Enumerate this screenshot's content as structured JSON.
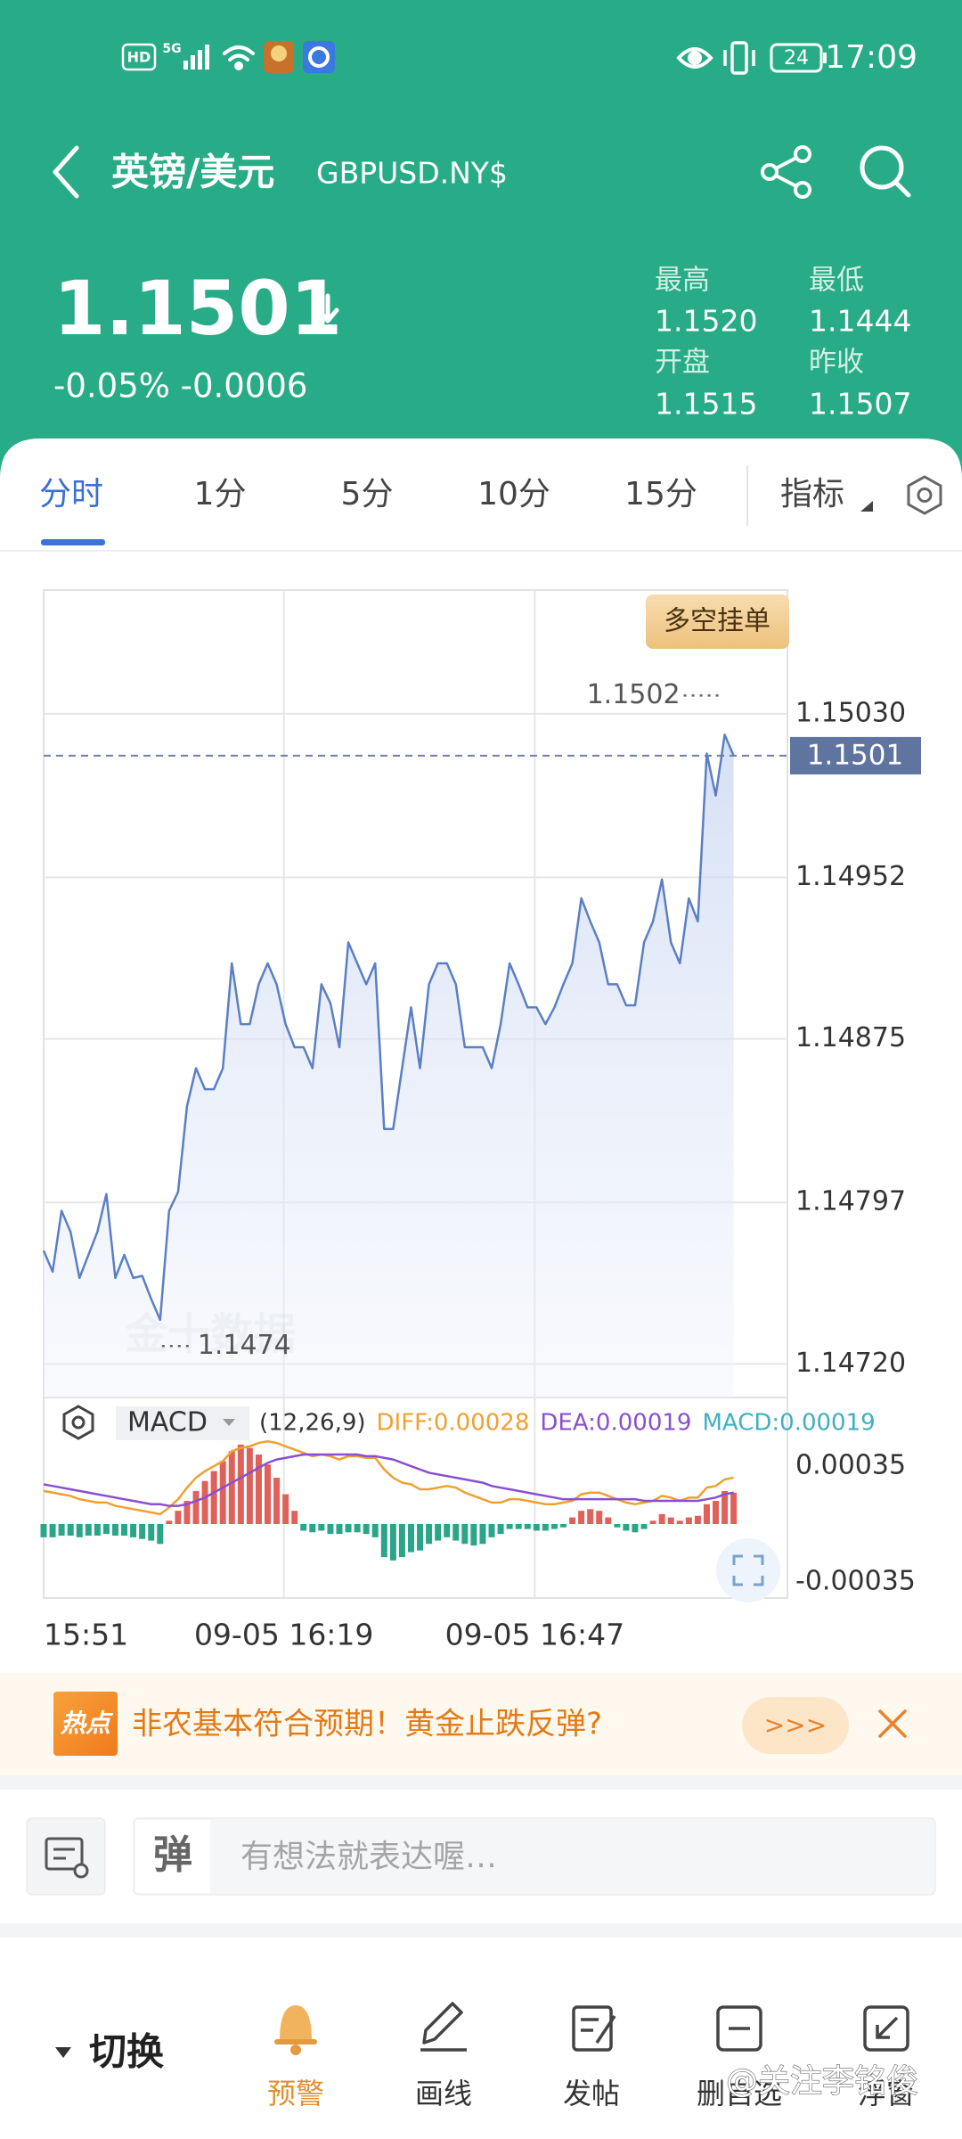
{
  "status_bar": {
    "network": [
      "HD",
      "5G"
    ],
    "battery": "24",
    "time": "17:09"
  },
  "header": {
    "title": "英镑/美元",
    "symbol": "GBPUSD.NY$"
  },
  "quote": {
    "price": "1.1501",
    "change": "-0.05% -0.0006",
    "stats": [
      {
        "label": "最高",
        "value": "1.1520"
      },
      {
        "label": "最低",
        "value": "1.1444"
      },
      {
        "label": "开盘",
        "value": "1.1515"
      },
      {
        "label": "昨收",
        "value": "1.1507"
      }
    ]
  },
  "tabs": [
    "分时",
    "1分",
    "5分",
    "10分",
    "15分",
    "指标"
  ],
  "chart_data": [
    {
      "type": "line",
      "color": "#5b7fc4",
      "grid": true,
      "categories": [
        "15:51",
        null,
        null,
        null,
        null,
        null,
        null,
        null,
        null,
        null,
        null,
        null,
        null,
        null,
        null,
        null,
        null,
        null,
        null,
        null,
        null,
        null,
        null,
        null,
        null,
        null,
        null,
        null,
        "09-05 16:19",
        null,
        null,
        null,
        null,
        null,
        null,
        null,
        null,
        null,
        null,
        null,
        null,
        null,
        null,
        null,
        null,
        null,
        null,
        null,
        null,
        null,
        null,
        null,
        null,
        null,
        null,
        null,
        "09-05 16:47",
        null,
        null,
        null,
        null,
        null,
        null,
        null,
        null,
        null,
        null,
        null,
        null,
        null,
        null,
        null,
        null,
        null,
        null,
        null,
        null,
        null,
        null,
        null,
        null,
        null,
        null,
        null
      ],
      "values": [
        1.14774,
        1.14764,
        1.14793,
        1.14783,
        1.14761,
        1.14772,
        1.14783,
        1.14801,
        1.14761,
        1.14772,
        1.14761,
        1.14762,
        1.14751,
        1.14741,
        1.14793,
        1.14802,
        1.14843,
        1.14861,
        1.14851,
        1.14851,
        1.14861,
        1.14911,
        1.14882,
        1.14882,
        1.14901,
        1.14911,
        1.14901,
        1.14882,
        1.14871,
        1.14871,
        1.14861,
        1.14901,
        1.14892,
        1.14871,
        1.14921,
        1.14911,
        1.14901,
        1.14911,
        1.14832,
        1.14832,
        1.14861,
        1.1489,
        1.14861,
        1.14901,
        1.14911,
        1.14911,
        1.14901,
        1.14871,
        1.14871,
        1.14871,
        1.14861,
        1.14882,
        1.14911,
        1.14901,
        1.1489,
        1.1489,
        1.14882,
        1.1489,
        1.14901,
        1.14911,
        1.14942,
        1.14931,
        1.14921,
        1.14901,
        1.14901,
        1.14891,
        1.14891,
        1.14921,
        1.14931,
        1.14951,
        1.14921,
        1.14911,
        1.14942,
        1.14931,
        1.15011,
        1.14991,
        1.1502,
        1.1501,
        null,
        null,
        null,
        null,
        null,
        null
      ],
      "ylim": [
        1.14704,
        1.15089
      ],
      "yticks": [
        {
          "value": 1.1503,
          "label": "1.15030"
        },
        1.14952,
        1.14875,
        1.14797,
        {
          "value": 1.1472,
          "label": "1.14720"
        }
      ],
      "last_price": 1.1501,
      "high": 1.1502,
      "low": 1.1474,
      "button": "多空挂单",
      "watermark": "金十数据"
    },
    {
      "type": "macd",
      "indicator": "MACD",
      "params": "(12,26,9)",
      "up_color": "#e0605a",
      "down_color": "#2aa58a",
      "ylim": [
        -0.000447,
        0.000765
      ],
      "yticks": [
        0.00035,
        -0.00035
      ],
      "series": [
        {
          "name": "DIFF:0.00028",
          "color": "#f0a030",
          "style": "line",
          "values": [
            0.0002,
            0.00019,
            0.00018,
            0.00017,
            0.00015,
            0.00014,
            0.00013,
            0.00013,
            0.00011,
            0.0001,
            9e-05,
            8e-05,
            7e-05,
            6e-05,
            0.0001,
            0.00015,
            0.00022,
            0.00028,
            0.00032,
            0.00035,
            0.00038,
            0.00044,
            0.00046,
            0.00047,
            0.00049,
            0.0005,
            0.00049,
            0.00047,
            0.00045,
            0.00043,
            0.00041,
            0.00042,
            0.00041,
            0.00039,
            0.00041,
            0.00041,
            0.0004,
            0.0004,
            0.00033,
            0.00028,
            0.00025,
            0.00024,
            0.00021,
            0.00021,
            0.00022,
            0.00023,
            0.00022,
            0.00019,
            0.00017,
            0.00015,
            0.00013,
            0.00013,
            0.00015,
            0.00015,
            0.00014,
            0.00013,
            0.00012,
            0.00012,
            0.00013,
            0.00014,
            0.00018,
            0.00019,
            0.00019,
            0.00017,
            0.00015,
            0.00013,
            0.00012,
            0.00013,
            0.00014,
            0.00017,
            0.00016,
            0.00014,
            0.00016,
            0.00016,
            0.00022,
            0.00023,
            0.00027,
            0.00028
          ]
        },
        {
          "name": "DEA:0.00019",
          "color": "#8a4fd0",
          "style": "line",
          "values": [
            0.00024,
            0.00023,
            0.00022,
            0.00021,
            0.0002,
            0.00019,
            0.00018,
            0.00017,
            0.00016,
            0.00015,
            0.00014,
            0.00013,
            0.00012,
            0.00012,
            0.00011,
            0.00011,
            0.00012,
            0.00014,
            0.00016,
            0.00019,
            0.00022,
            0.00025,
            0.00028,
            0.00031,
            0.00034,
            0.00037,
            0.00039,
            0.0004,
            0.00041,
            0.00042,
            0.00042,
            0.00042,
            0.00042,
            0.00042,
            0.00042,
            0.00042,
            0.00041,
            0.00041,
            0.0004,
            0.00039,
            0.00037,
            0.00035,
            0.00033,
            0.00031,
            0.0003,
            0.00029,
            0.00028,
            0.00027,
            0.00026,
            0.00025,
            0.00023,
            0.00022,
            0.00021,
            0.0002,
            0.00019,
            0.00018,
            0.00017,
            0.00016,
            0.00015,
            0.00015,
            0.00015,
            0.00015,
            0.00015,
            0.00015,
            0.00015,
            0.00015,
            0.00015,
            0.00014,
            0.00014,
            0.00014,
            0.00014,
            0.00014,
            0.00014,
            0.00014,
            0.00015,
            0.00016,
            0.00018,
            0.00019
          ]
        },
        {
          "name": "MACD:0.00019",
          "color": "#3fb0c0",
          "style": "bar",
          "values": [
            -8e-05,
            -8e-05,
            -7e-05,
            -7e-05,
            -8e-05,
            -7e-05,
            -7e-05,
            -6e-05,
            -7e-05,
            -7e-05,
            -8e-05,
            -9e-05,
            -0.0001,
            -0.00012,
            2e-05,
            8e-05,
            0.00014,
            0.0002,
            0.00026,
            0.00032,
            0.00038,
            0.00044,
            0.00048,
            0.00046,
            0.00042,
            0.00036,
            0.00028,
            0.00018,
            8e-05,
            -4e-05,
            -5e-05,
            -4e-05,
            -6e-05,
            -6e-05,
            -5e-05,
            -5e-05,
            -6e-05,
            -8e-05,
            -0.0002,
            -0.00022,
            -0.0002,
            -0.00017,
            -0.00016,
            -0.00012,
            -0.0001,
            -8e-05,
            -0.0001,
            -0.00012,
            -0.00013,
            -0.00012,
            -8e-05,
            -6e-05,
            -3e-05,
            -3e-05,
            -3e-05,
            -4e-05,
            -4e-05,
            -3e-05,
            -2e-05,
            4e-05,
            8e-05,
            9e-05,
            8e-05,
            4e-05,
            -2e-05,
            -4e-05,
            -5e-05,
            -3e-05,
            2e-05,
            6e-05,
            4e-05,
            2e-05,
            4e-05,
            5e-05,
            0.00012,
            0.00014,
            0.0002,
            0.00019
          ]
        }
      ]
    }
  ],
  "news": {
    "tag": "热点",
    "text": "非农基本符合预期！黄金止跌反弹?",
    "more": ">>>"
  },
  "comment": {
    "icon": "弹",
    "placeholder": "有想法就表达喔…"
  },
  "toolbar": {
    "switch": "切换",
    "items": [
      "预警",
      "画线",
      "发帖",
      "删自选",
      "浮窗"
    ]
  },
  "watermark": "@关注李铭俊"
}
